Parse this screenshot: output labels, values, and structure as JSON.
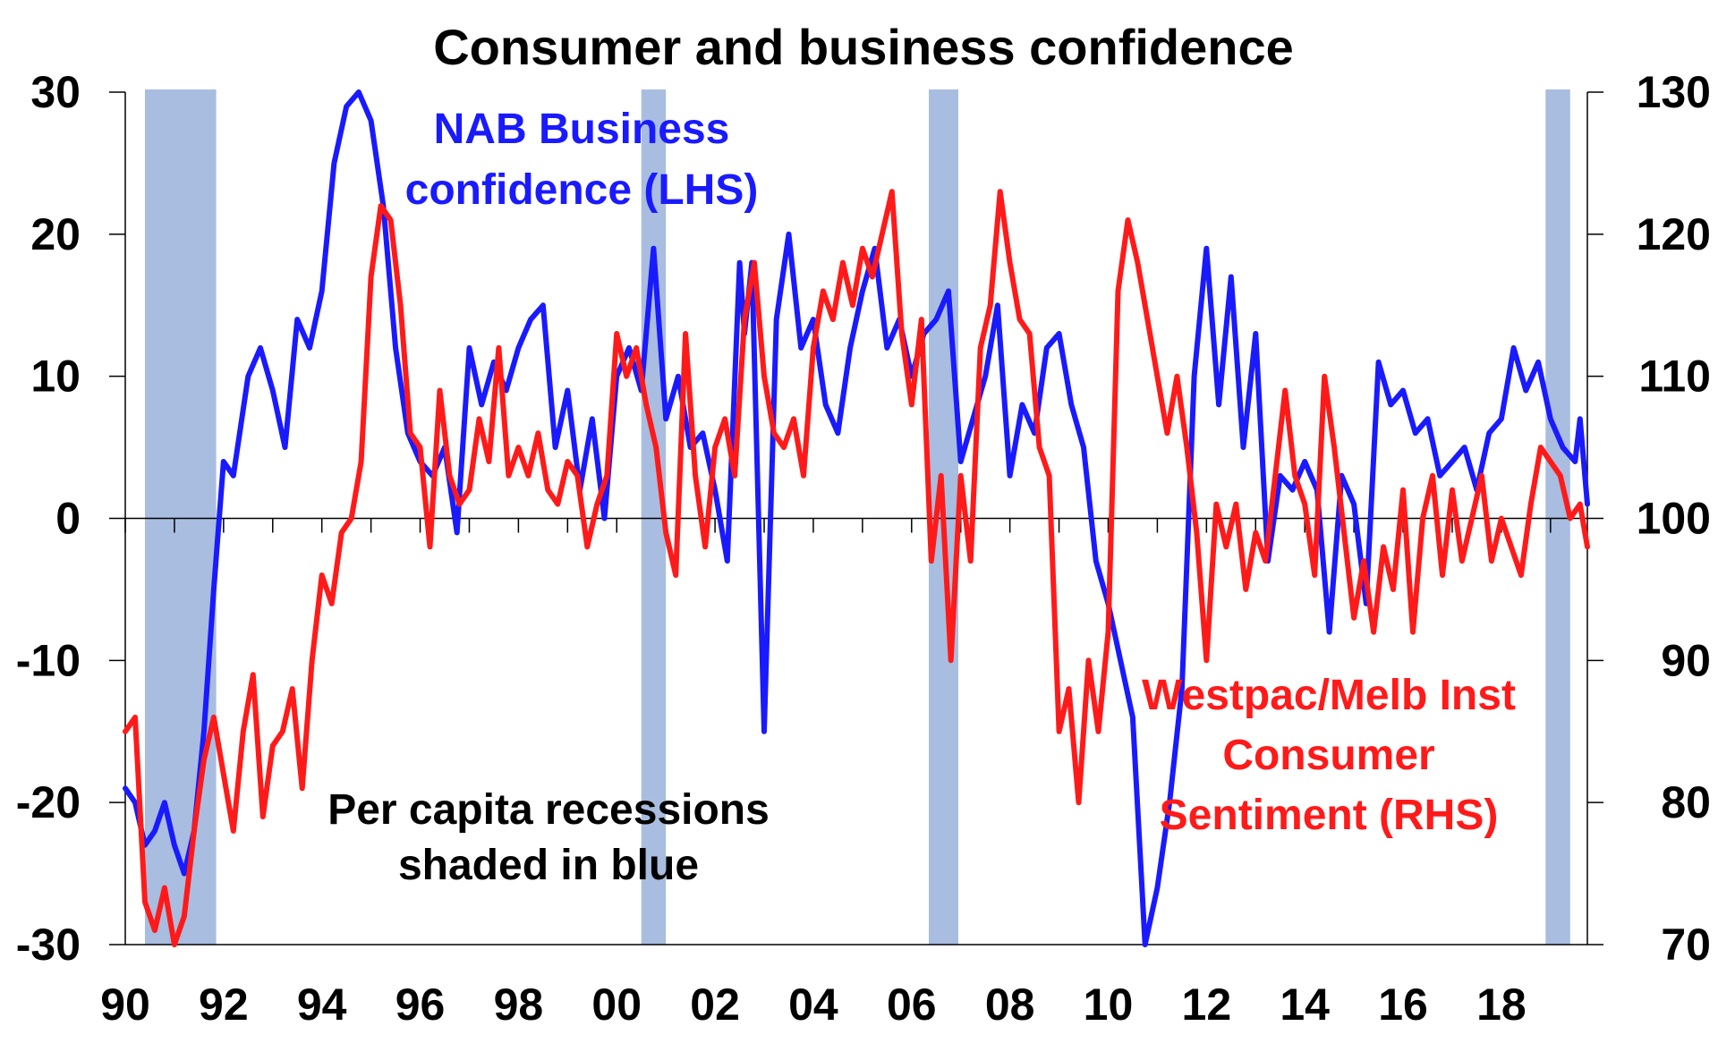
{
  "chart_data": {
    "type": "line",
    "title": "Consumer and business confidence",
    "x_range": [
      1990,
      2019.75
    ],
    "x_ticks": [
      "90",
      "92",
      "94",
      "96",
      "98",
      "00",
      "02",
      "04",
      "06",
      "08",
      "10",
      "12",
      "14",
      "16",
      "18"
    ],
    "x_tick_years": [
      1990,
      1992,
      1994,
      1996,
      1998,
      2000,
      2002,
      2004,
      2006,
      2008,
      2010,
      2012,
      2014,
      2016,
      2018
    ],
    "y_left": {
      "range": [
        -30,
        30
      ],
      "ticks": [
        "30",
        "20",
        "10",
        "0",
        "-10",
        "-20",
        "-30"
      ],
      "values": [
        30,
        20,
        10,
        0,
        -10,
        -20,
        -30
      ]
    },
    "y_right": {
      "range": [
        70,
        130
      ],
      "ticks": [
        "130",
        "120",
        "110",
        "100",
        "90",
        "80",
        "70"
      ],
      "values": [
        130,
        120,
        110,
        100,
        90,
        80,
        70
      ]
    },
    "recessions": [
      [
        1990.4,
        1991.85
      ],
      [
        2000.5,
        2001.0
      ],
      [
        2006.35,
        2006.95
      ],
      [
        2018.9,
        2019.4
      ]
    ],
    "recession_color": "#a8bddf",
    "series": [
      {
        "name": "NAB Business confidence (LHS)",
        "axis": "left",
        "color": "#1a1aff",
        "points": [
          [
            1990.0,
            -19
          ],
          [
            1990.2,
            -20
          ],
          [
            1990.4,
            -23
          ],
          [
            1990.6,
            -22
          ],
          [
            1990.8,
            -20
          ],
          [
            1991.0,
            -23
          ],
          [
            1991.2,
            -25
          ],
          [
            1991.4,
            -22
          ],
          [
            1991.6,
            -15
          ],
          [
            1991.8,
            -5
          ],
          [
            1992.0,
            4
          ],
          [
            1992.2,
            3
          ],
          [
            1992.5,
            10
          ],
          [
            1992.75,
            12
          ],
          [
            1993.0,
            9
          ],
          [
            1993.25,
            5
          ],
          [
            1993.5,
            14
          ],
          [
            1993.75,
            12
          ],
          [
            1994.0,
            16
          ],
          [
            1994.25,
            25
          ],
          [
            1994.5,
            29
          ],
          [
            1994.75,
            30
          ],
          [
            1995.0,
            28
          ],
          [
            1995.25,
            22
          ],
          [
            1995.5,
            12
          ],
          [
            1995.75,
            6
          ],
          [
            1996.0,
            4
          ],
          [
            1996.25,
            3
          ],
          [
            1996.5,
            5
          ],
          [
            1996.75,
            -1
          ],
          [
            1997.0,
            12
          ],
          [
            1997.25,
            8
          ],
          [
            1997.5,
            11
          ],
          [
            1997.75,
            9
          ],
          [
            1998.0,
            12
          ],
          [
            1998.25,
            14
          ],
          [
            1998.5,
            15
          ],
          [
            1998.75,
            5
          ],
          [
            1999.0,
            9
          ],
          [
            1999.25,
            2
          ],
          [
            1999.5,
            7
          ],
          [
            1999.75,
            0
          ],
          [
            2000.0,
            10
          ],
          [
            2000.25,
            12
          ],
          [
            2000.5,
            9
          ],
          [
            2000.75,
            19
          ],
          [
            2001.0,
            7
          ],
          [
            2001.25,
            10
          ],
          [
            2001.5,
            5
          ],
          [
            2001.75,
            6
          ],
          [
            2002.0,
            2
          ],
          [
            2002.25,
            -3
          ],
          [
            2002.5,
            18
          ],
          [
            2002.6,
            13
          ],
          [
            2002.75,
            18
          ],
          [
            2003.0,
            -15
          ],
          [
            2003.25,
            14
          ],
          [
            2003.5,
            20
          ],
          [
            2003.75,
            12
          ],
          [
            2004.0,
            14
          ],
          [
            2004.25,
            8
          ],
          [
            2004.5,
            6
          ],
          [
            2004.75,
            12
          ],
          [
            2005.0,
            16
          ],
          [
            2005.25,
            19
          ],
          [
            2005.5,
            12
          ],
          [
            2005.75,
            14
          ],
          [
            2006.0,
            10
          ],
          [
            2006.25,
            13
          ],
          [
            2006.5,
            14
          ],
          [
            2006.75,
            16
          ],
          [
            2007.0,
            4
          ],
          [
            2007.25,
            7
          ],
          [
            2007.5,
            10
          ],
          [
            2007.75,
            15
          ],
          [
            2008.0,
            3
          ],
          [
            2008.25,
            8
          ],
          [
            2008.5,
            6
          ],
          [
            2008.75,
            12
          ],
          [
            2009.0,
            13
          ],
          [
            2009.25,
            8
          ],
          [
            2009.5,
            5
          ],
          [
            2009.75,
            -3
          ],
          [
            2010.0,
            -6
          ],
          [
            2010.25,
            -10
          ],
          [
            2010.5,
            -14
          ],
          [
            2010.75,
            -30
          ],
          [
            2011.0,
            -26
          ],
          [
            2011.25,
            -20
          ],
          [
            2011.5,
            -12
          ],
          [
            2011.75,
            10
          ],
          [
            2012.0,
            19
          ],
          [
            2012.25,
            8
          ],
          [
            2012.5,
            17
          ],
          [
            2012.75,
            5
          ],
          [
            2013.0,
            13
          ],
          [
            2013.25,
            -3
          ],
          [
            2013.5,
            3
          ],
          [
            2013.75,
            2
          ],
          [
            2014.0,
            4
          ],
          [
            2014.25,
            2
          ],
          [
            2014.5,
            -8
          ],
          [
            2014.75,
            3
          ],
          [
            2015.0,
            1
          ],
          [
            2015.25,
            -6
          ],
          [
            2015.5,
            11
          ],
          [
            2015.75,
            8
          ],
          [
            2016.0,
            9
          ],
          [
            2016.25,
            6
          ],
          [
            2016.5,
            7
          ],
          [
            2016.75,
            3
          ],
          [
            2017.0,
            4
          ],
          [
            2017.25,
            5
          ],
          [
            2017.5,
            2
          ],
          [
            2017.75,
            6
          ],
          [
            2018.0,
            7
          ],
          [
            2018.25,
            12
          ],
          [
            2018.5,
            9
          ],
          [
            2018.75,
            11
          ],
          [
            2019.0,
            7
          ],
          [
            2019.25,
            5
          ],
          [
            2019.5,
            4
          ],
          [
            2019.6,
            7
          ],
          [
            2019.75,
            1
          ]
        ]
      },
      {
        "name": "Westpac/Melb Inst Consumer Sentiment (RHS)",
        "axis": "right",
        "color": "#ff1a1a",
        "points": [
          [
            1990.0,
            85
          ],
          [
            1990.2,
            86
          ],
          [
            1990.4,
            73
          ],
          [
            1990.6,
            71
          ],
          [
            1990.8,
            74
          ],
          [
            1991.0,
            70
          ],
          [
            1991.2,
            72
          ],
          [
            1991.4,
            78
          ],
          [
            1991.6,
            83
          ],
          [
            1991.8,
            86
          ],
          [
            1992.0,
            82
          ],
          [
            1992.2,
            78
          ],
          [
            1992.4,
            85
          ],
          [
            1992.6,
            89
          ],
          [
            1992.8,
            79
          ],
          [
            1993.0,
            84
          ],
          [
            1993.2,
            85
          ],
          [
            1993.4,
            88
          ],
          [
            1993.6,
            81
          ],
          [
            1993.8,
            90
          ],
          [
            1994.0,
            96
          ],
          [
            1994.2,
            94
          ],
          [
            1994.4,
            99
          ],
          [
            1994.6,
            100
          ],
          [
            1994.8,
            104
          ],
          [
            1995.0,
            117
          ],
          [
            1995.2,
            122
          ],
          [
            1995.4,
            121
          ],
          [
            1995.6,
            115
          ],
          [
            1995.8,
            106
          ],
          [
            1996.0,
            105
          ],
          [
            1996.2,
            98
          ],
          [
            1996.4,
            109
          ],
          [
            1996.6,
            103
          ],
          [
            1996.8,
            101
          ],
          [
            1997.0,
            102
          ],
          [
            1997.2,
            107
          ],
          [
            1997.4,
            104
          ],
          [
            1997.6,
            112
          ],
          [
            1997.8,
            103
          ],
          [
            1998.0,
            105
          ],
          [
            1998.2,
            103
          ],
          [
            1998.4,
            106
          ],
          [
            1998.6,
            102
          ],
          [
            1998.8,
            101
          ],
          [
            1999.0,
            104
          ],
          [
            1999.2,
            103
          ],
          [
            1999.4,
            98
          ],
          [
            1999.6,
            101
          ],
          [
            1999.8,
            103
          ],
          [
            2000.0,
            113
          ],
          [
            2000.2,
            110
          ],
          [
            2000.4,
            112
          ],
          [
            2000.6,
            108
          ],
          [
            2000.8,
            105
          ],
          [
            2001.0,
            99
          ],
          [
            2001.2,
            96
          ],
          [
            2001.4,
            113
          ],
          [
            2001.6,
            103
          ],
          [
            2001.8,
            98
          ],
          [
            2002.0,
            105
          ],
          [
            2002.2,
            107
          ],
          [
            2002.4,
            103
          ],
          [
            2002.6,
            114
          ],
          [
            2002.8,
            118
          ],
          [
            2003.0,
            110
          ],
          [
            2003.2,
            106
          ],
          [
            2003.4,
            105
          ],
          [
            2003.6,
            107
          ],
          [
            2003.8,
            103
          ],
          [
            2004.0,
            112
          ],
          [
            2004.2,
            116
          ],
          [
            2004.4,
            114
          ],
          [
            2004.6,
            118
          ],
          [
            2004.8,
            115
          ],
          [
            2005.0,
            119
          ],
          [
            2005.2,
            117
          ],
          [
            2005.4,
            120
          ],
          [
            2005.6,
            123
          ],
          [
            2005.8,
            113
          ],
          [
            2006.0,
            108
          ],
          [
            2006.2,
            114
          ],
          [
            2006.4,
            97
          ],
          [
            2006.6,
            103
          ],
          [
            2006.8,
            90
          ],
          [
            2007.0,
            103
          ],
          [
            2007.2,
            97
          ],
          [
            2007.4,
            112
          ],
          [
            2007.6,
            115
          ],
          [
            2007.8,
            123
          ],
          [
            2008.0,
            118
          ],
          [
            2008.2,
            114
          ],
          [
            2008.4,
            113
          ],
          [
            2008.6,
            105
          ],
          [
            2008.8,
            103
          ],
          [
            2009.0,
            85
          ],
          [
            2009.2,
            88
          ],
          [
            2009.4,
            80
          ],
          [
            2009.6,
            90
          ],
          [
            2009.8,
            85
          ],
          [
            2010.0,
            92
          ],
          [
            2010.2,
            116
          ],
          [
            2010.4,
            121
          ],
          [
            2010.6,
            118
          ],
          [
            2010.8,
            114
          ],
          [
            2011.0,
            110
          ],
          [
            2011.2,
            106
          ],
          [
            2011.4,
            110
          ],
          [
            2011.6,
            105
          ],
          [
            2011.8,
            99
          ],
          [
            2012.0,
            90
          ],
          [
            2012.2,
            101
          ],
          [
            2012.4,
            98
          ],
          [
            2012.6,
            101
          ],
          [
            2012.8,
            95
          ],
          [
            2013.0,
            99
          ],
          [
            2013.2,
            97
          ],
          [
            2013.4,
            103
          ],
          [
            2013.6,
            109
          ],
          [
            2013.8,
            103
          ],
          [
            2014.0,
            101
          ],
          [
            2014.2,
            96
          ],
          [
            2014.4,
            110
          ],
          [
            2014.6,
            105
          ],
          [
            2014.8,
            99
          ],
          [
            2015.0,
            93
          ],
          [
            2015.2,
            97
          ],
          [
            2015.4,
            92
          ],
          [
            2015.6,
            98
          ],
          [
            2015.8,
            95
          ],
          [
            2016.0,
            102
          ],
          [
            2016.2,
            92
          ],
          [
            2016.4,
            100
          ],
          [
            2016.6,
            103
          ],
          [
            2016.8,
            96
          ],
          [
            2017.0,
            102
          ],
          [
            2017.2,
            97
          ],
          [
            2017.4,
            100
          ],
          [
            2017.6,
            103
          ],
          [
            2017.8,
            97
          ],
          [
            2018.0,
            100
          ],
          [
            2018.2,
            98
          ],
          [
            2018.4,
            96
          ],
          [
            2018.6,
            101
          ],
          [
            2018.8,
            105
          ],
          [
            2019.0,
            104
          ],
          [
            2019.2,
            103
          ],
          [
            2019.4,
            100
          ],
          [
            2019.6,
            101
          ],
          [
            2019.75,
            98
          ]
        ]
      }
    ],
    "annotations": [
      {
        "lines": [
          "NAB Business",
          "confidence (LHS)"
        ],
        "color": "#1a1aff"
      },
      {
        "lines": [
          "Westpac/Melb Inst",
          "Consumer",
          "Sentiment (RHS)"
        ],
        "color": "#ff1a1a"
      },
      {
        "lines": [
          "Per capita recessions",
          "shaded in blue"
        ],
        "color": "#000000"
      }
    ]
  }
}
